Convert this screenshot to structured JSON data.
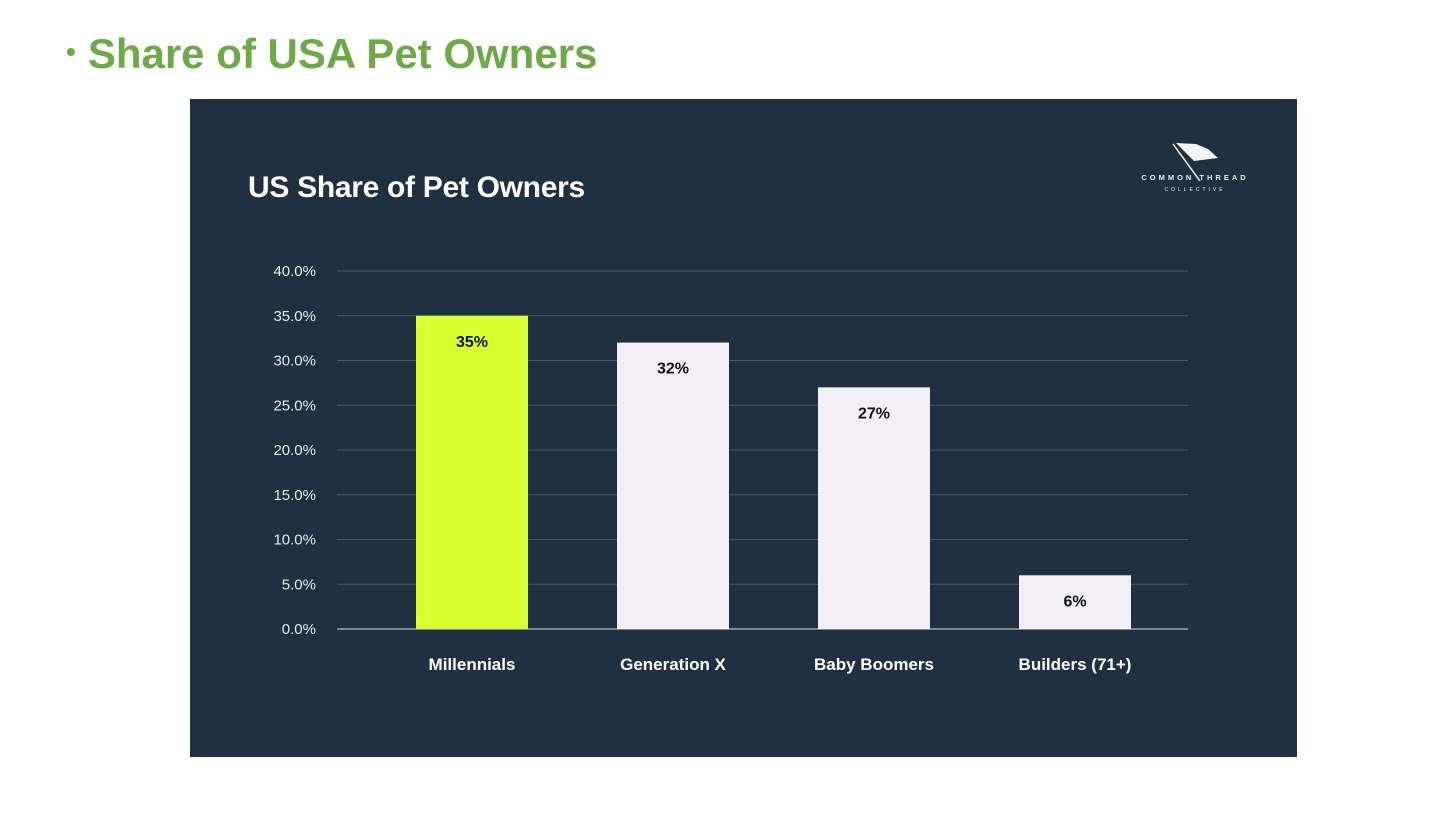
{
  "slide": {
    "bullet": "•",
    "title": "Share of USA Pet Owners"
  },
  "logo": {
    "line1": "COMMON THREAD",
    "line2": "COLLECTIVE"
  },
  "chart_data": {
    "type": "bar",
    "title": "US Share of Pet Owners",
    "categories": [
      "Millennials",
      "Generation X",
      "Baby Boomers",
      "Builders (71+)"
    ],
    "values": [
      35,
      32,
      27,
      6
    ],
    "data_labels": [
      "35%",
      "32%",
      "27%",
      "6%"
    ],
    "ylim": [
      0,
      40
    ],
    "yticks": [
      0,
      5,
      10,
      15,
      20,
      25,
      30,
      35,
      40
    ],
    "ytick_labels": [
      "0.0%",
      "5.0%",
      "10.0%",
      "15.0%",
      "20.0%",
      "25.0%",
      "30.0%",
      "35.0%",
      "40.0%"
    ],
    "xlabel": "",
    "ylabel": "",
    "grid": true,
    "colors": {
      "highlight": "#d7ff2e",
      "bar": "#f2f0f4",
      "background": "#1f3040",
      "grid": "#4a5a68",
      "text": "#ffffff"
    },
    "highlight_index": 0
  }
}
